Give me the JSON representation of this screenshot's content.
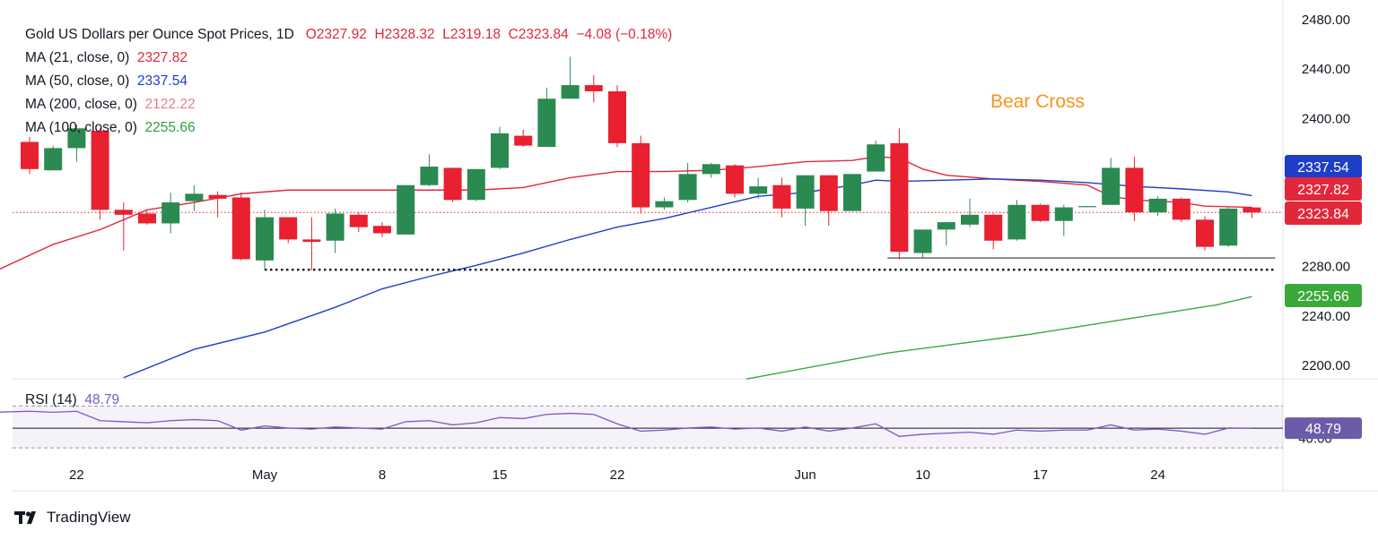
{
  "header": {
    "title": "Gold US Dollars per Ounce Spot Prices, 1D",
    "open": "O2327.92",
    "high": "H2328.32",
    "low": "L2319.18",
    "close": "C2323.84",
    "change": "−4.08 (−0.18%)"
  },
  "legend": [
    {
      "label": "MA (21, close, 0)",
      "value": "2327.82",
      "color": "#e0283a"
    },
    {
      "label": "MA (50, close, 0)",
      "value": "2337.54",
      "color": "#1e3ec8"
    },
    {
      "label": "MA (200, close, 0)",
      "value": "2122.22",
      "color": "#f2788a"
    },
    {
      "label": "MA (100, close, 0)",
      "value": "2255.66",
      "color": "#2f9e3c"
    }
  ],
  "annotation": "Bear Cross",
  "rsi": {
    "label": "RSI (14)",
    "value": "48.79",
    "color": "#7e57c2"
  },
  "branding": "TradingView",
  "colors": {
    "up": "#2b8a52",
    "down": "#e8202f",
    "ma21": "#e0283a",
    "ma50": "#1e3ec8",
    "ma100": "#3ba83a",
    "rsi": "#7e57c2"
  },
  "chart_data": {
    "type": "candlestick",
    "title": "Gold US Dollars per Ounce Spot Prices, 1D",
    "y_ticks": [
      "2480.00",
      "2440.00",
      "2400.00",
      "2280.00",
      "2240.00",
      "2200.00"
    ],
    "ylim": [
      2190,
      2485
    ],
    "x_labels": [
      {
        "label": "22",
        "index": 2
      },
      {
        "label": "May",
        "index": 10
      },
      {
        "label": "8",
        "index": 15
      },
      {
        "label": "15",
        "index": 20
      },
      {
        "label": "22",
        "index": 25
      },
      {
        "label": "Jun",
        "index": 33
      },
      {
        "label": "10",
        "index": 38
      },
      {
        "label": "17",
        "index": 43
      },
      {
        "label": "24",
        "index": 48
      }
    ],
    "candles": [
      {
        "o": 2381,
        "h": 2385,
        "l": 2355,
        "c": 2359
      },
      {
        "o": 2358,
        "h": 2378,
        "l": 2358,
        "c": 2376
      },
      {
        "o": 2376,
        "h": 2395,
        "l": 2365,
        "c": 2392
      },
      {
        "o": 2390,
        "h": 2392,
        "l": 2318,
        "c": 2326
      },
      {
        "o": 2326,
        "h": 2332,
        "l": 2293,
        "c": 2322
      },
      {
        "o": 2323,
        "h": 2325,
        "l": 2314,
        "c": 2315
      },
      {
        "o": 2315,
        "h": 2340,
        "l": 2307,
        "c": 2332
      },
      {
        "o": 2333,
        "h": 2346,
        "l": 2325,
        "c": 2339
      },
      {
        "o": 2338,
        "h": 2341,
        "l": 2320,
        "c": 2335
      },
      {
        "o": 2336,
        "h": 2340,
        "l": 2285,
        "c": 2286
      },
      {
        "o": 2285,
        "h": 2326,
        "l": 2278,
        "c": 2320
      },
      {
        "o": 2320,
        "h": 2320,
        "l": 2299,
        "c": 2302
      },
      {
        "o": 2302,
        "h": 2320,
        "l": 2277,
        "c": 2300
      },
      {
        "o": 2301,
        "h": 2327,
        "l": 2291,
        "c": 2323
      },
      {
        "o": 2322,
        "h": 2324,
        "l": 2308,
        "c": 2312
      },
      {
        "o": 2313,
        "h": 2316,
        "l": 2304,
        "c": 2307
      },
      {
        "o": 2306,
        "h": 2346,
        "l": 2306,
        "c": 2346
      },
      {
        "o": 2346,
        "h": 2371,
        "l": 2345,
        "c": 2361
      },
      {
        "o": 2360,
        "h": 2360,
        "l": 2332,
        "c": 2334
      },
      {
        "o": 2334,
        "h": 2359,
        "l": 2333,
        "c": 2359
      },
      {
        "o": 2360,
        "h": 2393,
        "l": 2359,
        "c": 2388
      },
      {
        "o": 2386,
        "h": 2391,
        "l": 2377,
        "c": 2378
      },
      {
        "o": 2377,
        "h": 2425,
        "l": 2377,
        "c": 2416
      },
      {
        "o": 2416,
        "h": 2450,
        "l": 2416,
        "c": 2427
      },
      {
        "o": 2427,
        "h": 2435,
        "l": 2413,
        "c": 2422
      },
      {
        "o": 2422,
        "h": 2427,
        "l": 2377,
        "c": 2380
      },
      {
        "o": 2380,
        "h": 2386,
        "l": 2323,
        "c": 2328
      },
      {
        "o": 2328,
        "h": 2336,
        "l": 2326,
        "c": 2333
      },
      {
        "o": 2334,
        "h": 2364,
        "l": 2332,
        "c": 2355
      },
      {
        "o": 2355,
        "h": 2364,
        "l": 2352,
        "c": 2363
      },
      {
        "o": 2362,
        "h": 2363,
        "l": 2336,
        "c": 2339
      },
      {
        "o": 2339,
        "h": 2352,
        "l": 2335,
        "c": 2345
      },
      {
        "o": 2346,
        "h": 2352,
        "l": 2320,
        "c": 2327
      },
      {
        "o": 2327,
        "h": 2354,
        "l": 2313,
        "c": 2354
      },
      {
        "o": 2354,
        "h": 2354,
        "l": 2313,
        "c": 2325
      },
      {
        "o": 2325,
        "h": 2355,
        "l": 2325,
        "c": 2355
      },
      {
        "o": 2357,
        "h": 2382,
        "l": 2357,
        "c": 2379
      },
      {
        "o": 2380,
        "h": 2392,
        "l": 2286,
        "c": 2292
      },
      {
        "o": 2291,
        "h": 2310,
        "l": 2287,
        "c": 2310
      },
      {
        "o": 2310,
        "h": 2316,
        "l": 2297,
        "c": 2316
      },
      {
        "o": 2314,
        "h": 2335,
        "l": 2312,
        "c": 2322
      },
      {
        "o": 2322,
        "h": 2323,
        "l": 2294,
        "c": 2301
      },
      {
        "o": 2302,
        "h": 2334,
        "l": 2301,
        "c": 2330
      },
      {
        "o": 2330,
        "h": 2331,
        "l": 2316,
        "c": 2317
      },
      {
        "o": 2317,
        "h": 2330,
        "l": 2305,
        "c": 2328
      },
      {
        "o": 2329,
        "h": 2329,
        "l": 2328,
        "c": 2329
      },
      {
        "o": 2330,
        "h": 2368,
        "l": 2330,
        "c": 2360
      },
      {
        "o": 2360,
        "h": 2369,
        "l": 2317,
        "c": 2324
      },
      {
        "o": 2324,
        "h": 2337,
        "l": 2321,
        "c": 2335
      },
      {
        "o": 2335,
        "h": 2336,
        "l": 2316,
        "c": 2318
      },
      {
        "o": 2318,
        "h": 2321,
        "l": 2293,
        "c": 2296
      },
      {
        "o": 2297,
        "h": 2328,
        "l": 2296,
        "c": 2327
      },
      {
        "o": 2327.92,
        "h": 2328.32,
        "l": 2319.18,
        "c": 2323.84
      }
    ],
    "series": [
      {
        "name": "MA (21, close, 0)",
        "color": "#e0283a",
        "points": [
          [
            -1.5,
            2276
          ],
          [
            1,
            2298
          ],
          [
            3,
            2310
          ],
          [
            5,
            2326
          ],
          [
            7,
            2332
          ],
          [
            9,
            2339
          ],
          [
            11,
            2342
          ],
          [
            14,
            2342
          ],
          [
            17,
            2342
          ],
          [
            19,
            2342
          ],
          [
            21,
            2344
          ],
          [
            23,
            2352
          ],
          [
            25,
            2357
          ],
          [
            27,
            2357
          ],
          [
            29,
            2358
          ],
          [
            31,
            2361
          ],
          [
            33,
            2365
          ],
          [
            35,
            2366
          ],
          [
            36,
            2369
          ],
          [
            37,
            2368
          ],
          [
            38,
            2359
          ],
          [
            39,
            2354
          ],
          [
            41,
            2351
          ],
          [
            43,
            2349
          ],
          [
            45,
            2346
          ],
          [
            46,
            2337
          ],
          [
            47,
            2334
          ],
          [
            49,
            2332
          ],
          [
            50,
            2329
          ],
          [
            52,
            2328
          ]
        ]
      },
      {
        "name": "MA (50, close, 0)",
        "color": "#1e3ec8",
        "points": [
          [
            4,
            2190
          ],
          [
            7,
            2213
          ],
          [
            10,
            2227
          ],
          [
            13,
            2247
          ],
          [
            15,
            2262
          ],
          [
            17,
            2272
          ],
          [
            19,
            2281
          ],
          [
            21,
            2291
          ],
          [
            23,
            2302
          ],
          [
            25,
            2312
          ],
          [
            27,
            2319
          ],
          [
            29,
            2328
          ],
          [
            31,
            2337
          ],
          [
            33,
            2340
          ],
          [
            35,
            2346
          ],
          [
            36,
            2350
          ],
          [
            37,
            2349
          ],
          [
            39,
            2350
          ],
          [
            41,
            2351
          ],
          [
            43,
            2350
          ],
          [
            45,
            2348
          ],
          [
            47,
            2345
          ],
          [
            49,
            2343
          ],
          [
            51,
            2340.5
          ],
          [
            52,
            2337.5
          ]
        ]
      },
      {
        "name": "MA (100, close, 0)",
        "color": "#3ba83a",
        "points": [
          [
            30.5,
            2189
          ],
          [
            32.5,
            2196
          ],
          [
            34.5,
            2203
          ],
          [
            36.5,
            2210
          ],
          [
            38.5,
            2215
          ],
          [
            40.5,
            2220
          ],
          [
            42.5,
            2225
          ],
          [
            44.5,
            2231
          ],
          [
            46.5,
            2237
          ],
          [
            48.5,
            2243
          ],
          [
            50.5,
            2249
          ],
          [
            52,
            2255.7
          ]
        ]
      }
    ],
    "support_levels": [
      {
        "value": 2277.5,
        "style": "dotted",
        "from": 10,
        "to": 53
      },
      {
        "value": 2287,
        "style": "solid",
        "from": 36.5,
        "to": 53
      }
    ],
    "price_tags": [
      {
        "label": "2337.54",
        "value": 2337.54,
        "color": "#1e3ec8"
      },
      {
        "label": "2327.82",
        "value": 2327.82,
        "color": "#e0283a"
      },
      {
        "label": "2323.84",
        "value": 2323.84,
        "color": "#e0283a"
      },
      {
        "label": "2255.66",
        "value": 2255.66,
        "color": "#3ba83a"
      }
    ],
    "rsi": {
      "ylim": [
        25,
        90
      ],
      "upper": 70,
      "lower": 30,
      "tick_label": "40.00",
      "tick_value": 40,
      "current_label": "48.79",
      "current_value": 48.79,
      "points": [
        [
          -1.5,
          64
        ],
        [
          0,
          65
        ],
        [
          1,
          64
        ],
        [
          2,
          65
        ],
        [
          3,
          56
        ],
        [
          4,
          55
        ],
        [
          5,
          54
        ],
        [
          6,
          56
        ],
        [
          7,
          57
        ],
        [
          8,
          56
        ],
        [
          9,
          47
        ],
        [
          10,
          51
        ],
        [
          11,
          49
        ],
        [
          12,
          48
        ],
        [
          13,
          50
        ],
        [
          14,
          49
        ],
        [
          15,
          48
        ],
        [
          16,
          55
        ],
        [
          17,
          56
        ],
        [
          18,
          52
        ],
        [
          19,
          54
        ],
        [
          20,
          59
        ],
        [
          21,
          58
        ],
        [
          22,
          62
        ],
        [
          23,
          63
        ],
        [
          24,
          62
        ],
        [
          25,
          53
        ],
        [
          26,
          46
        ],
        [
          27,
          47
        ],
        [
          28,
          49
        ],
        [
          29,
          50
        ],
        [
          30,
          48
        ],
        [
          31,
          49
        ],
        [
          32,
          46
        ],
        [
          33,
          50
        ],
        [
          34,
          46
        ],
        [
          35,
          49
        ],
        [
          36,
          53
        ],
        [
          37,
          41
        ],
        [
          38,
          43
        ],
        [
          39,
          44
        ],
        [
          40,
          45
        ],
        [
          41,
          43
        ],
        [
          42,
          47
        ],
        [
          43,
          46
        ],
        [
          44,
          47
        ],
        [
          45,
          47
        ],
        [
          46,
          52
        ],
        [
          47,
          47
        ],
        [
          48,
          48
        ],
        [
          49,
          46
        ],
        [
          50,
          43
        ],
        [
          51,
          49
        ],
        [
          52,
          48.8
        ]
      ]
    }
  }
}
